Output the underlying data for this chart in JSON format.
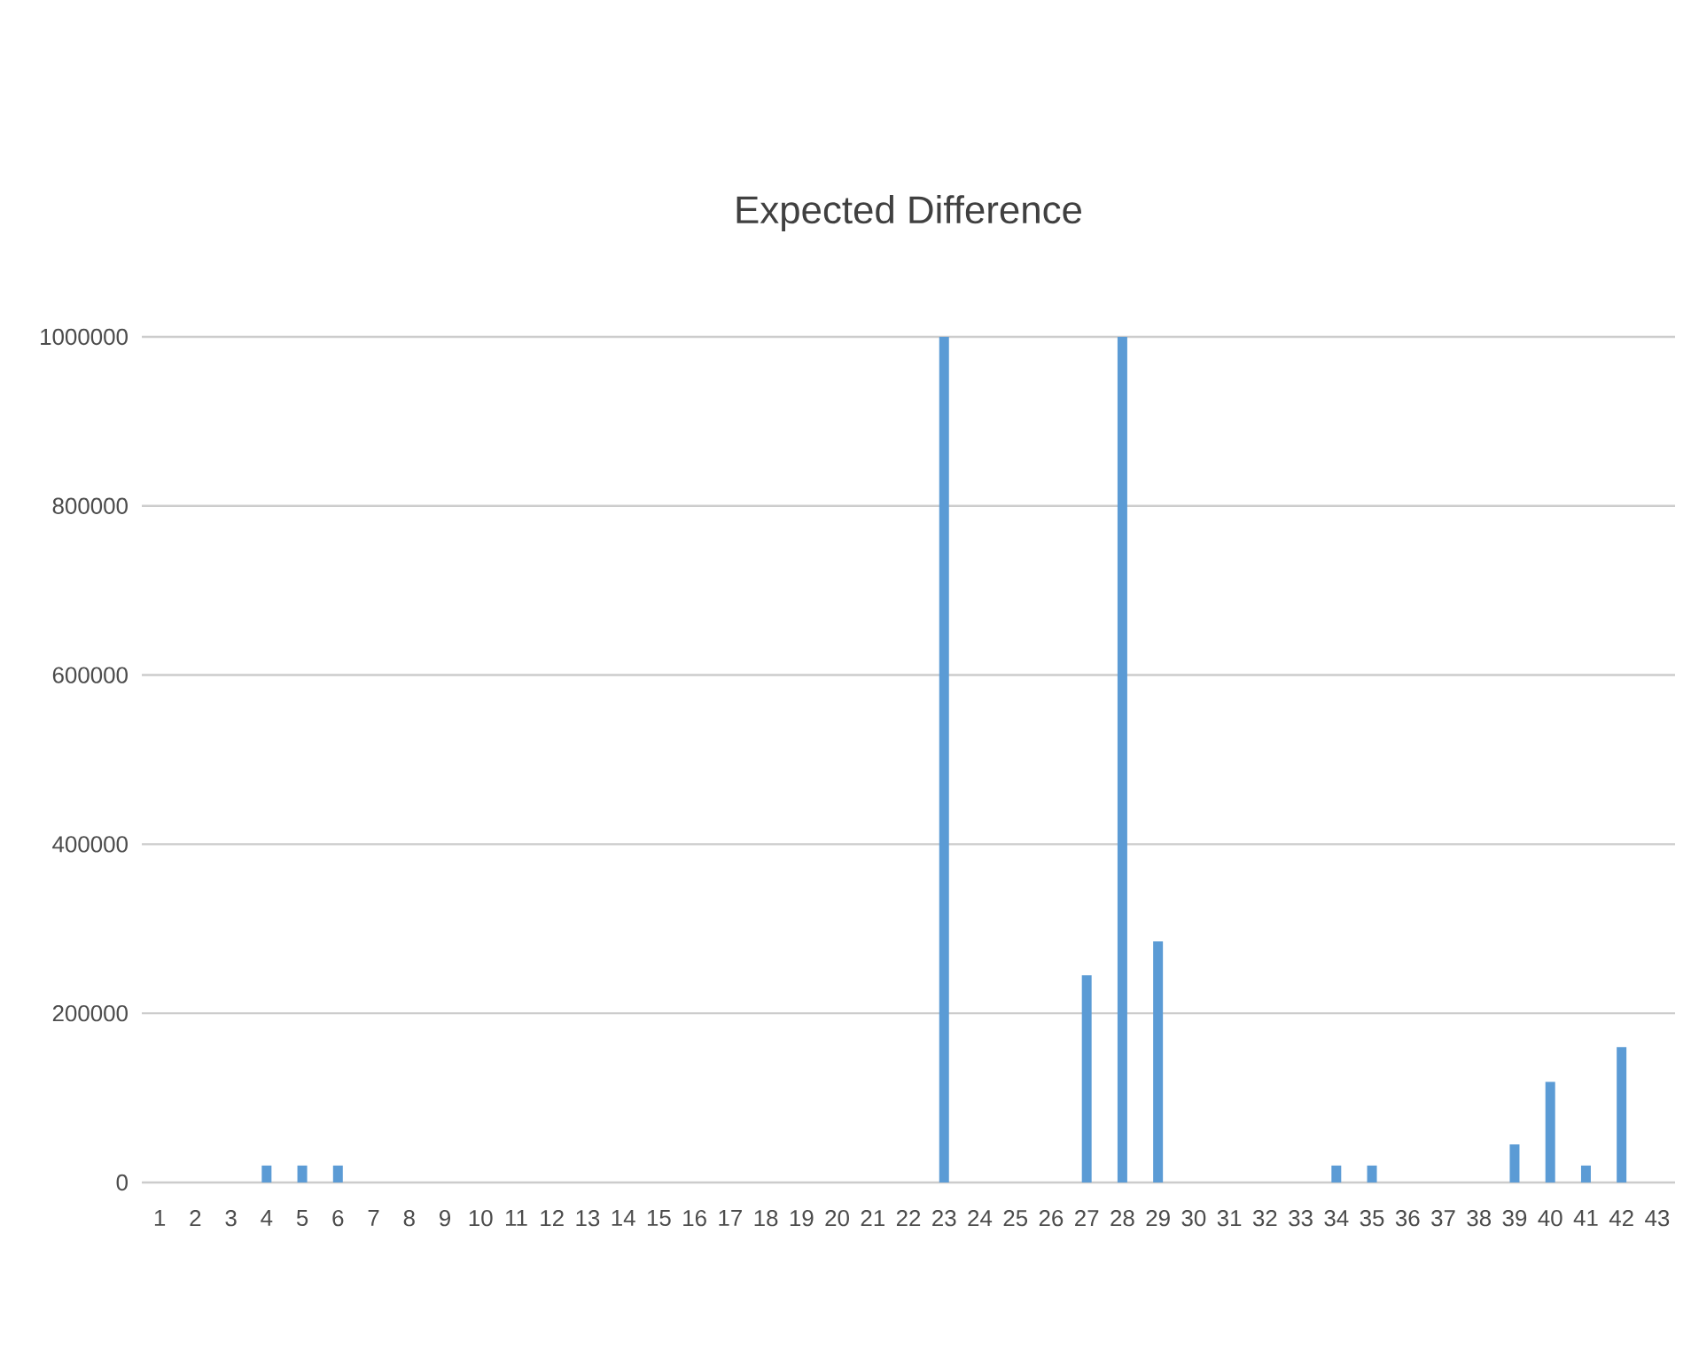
{
  "chart_data": {
    "type": "bar",
    "title": "Expected Difference",
    "categories": [
      "1",
      "2",
      "3",
      "4",
      "5",
      "6",
      "7",
      "8",
      "9",
      "10",
      "11",
      "12",
      "13",
      "14",
      "15",
      "16",
      "17",
      "18",
      "19",
      "20",
      "21",
      "22",
      "23",
      "24",
      "25",
      "26",
      "27",
      "28",
      "29",
      "30",
      "31",
      "32",
      "33",
      "34",
      "35",
      "36",
      "37",
      "38",
      "39",
      "40",
      "41",
      "42",
      "43"
    ],
    "values": [
      0,
      0,
      0,
      20000,
      20000,
      20000,
      0,
      0,
      0,
      0,
      0,
      0,
      0,
      0,
      0,
      0,
      0,
      0,
      0,
      0,
      0,
      0,
      1000000,
      0,
      0,
      0,
      245000,
      1000000,
      285000,
      0,
      0,
      0,
      0,
      20000,
      20000,
      0,
      0,
      0,
      45000,
      119000,
      20000,
      160000,
      0
    ],
    "color": "#5b9bd5",
    "ylim": [
      0,
      1000000
    ],
    "yticks": [
      0,
      200000,
      400000,
      600000,
      800000,
      1000000
    ],
    "grid": "y"
  }
}
